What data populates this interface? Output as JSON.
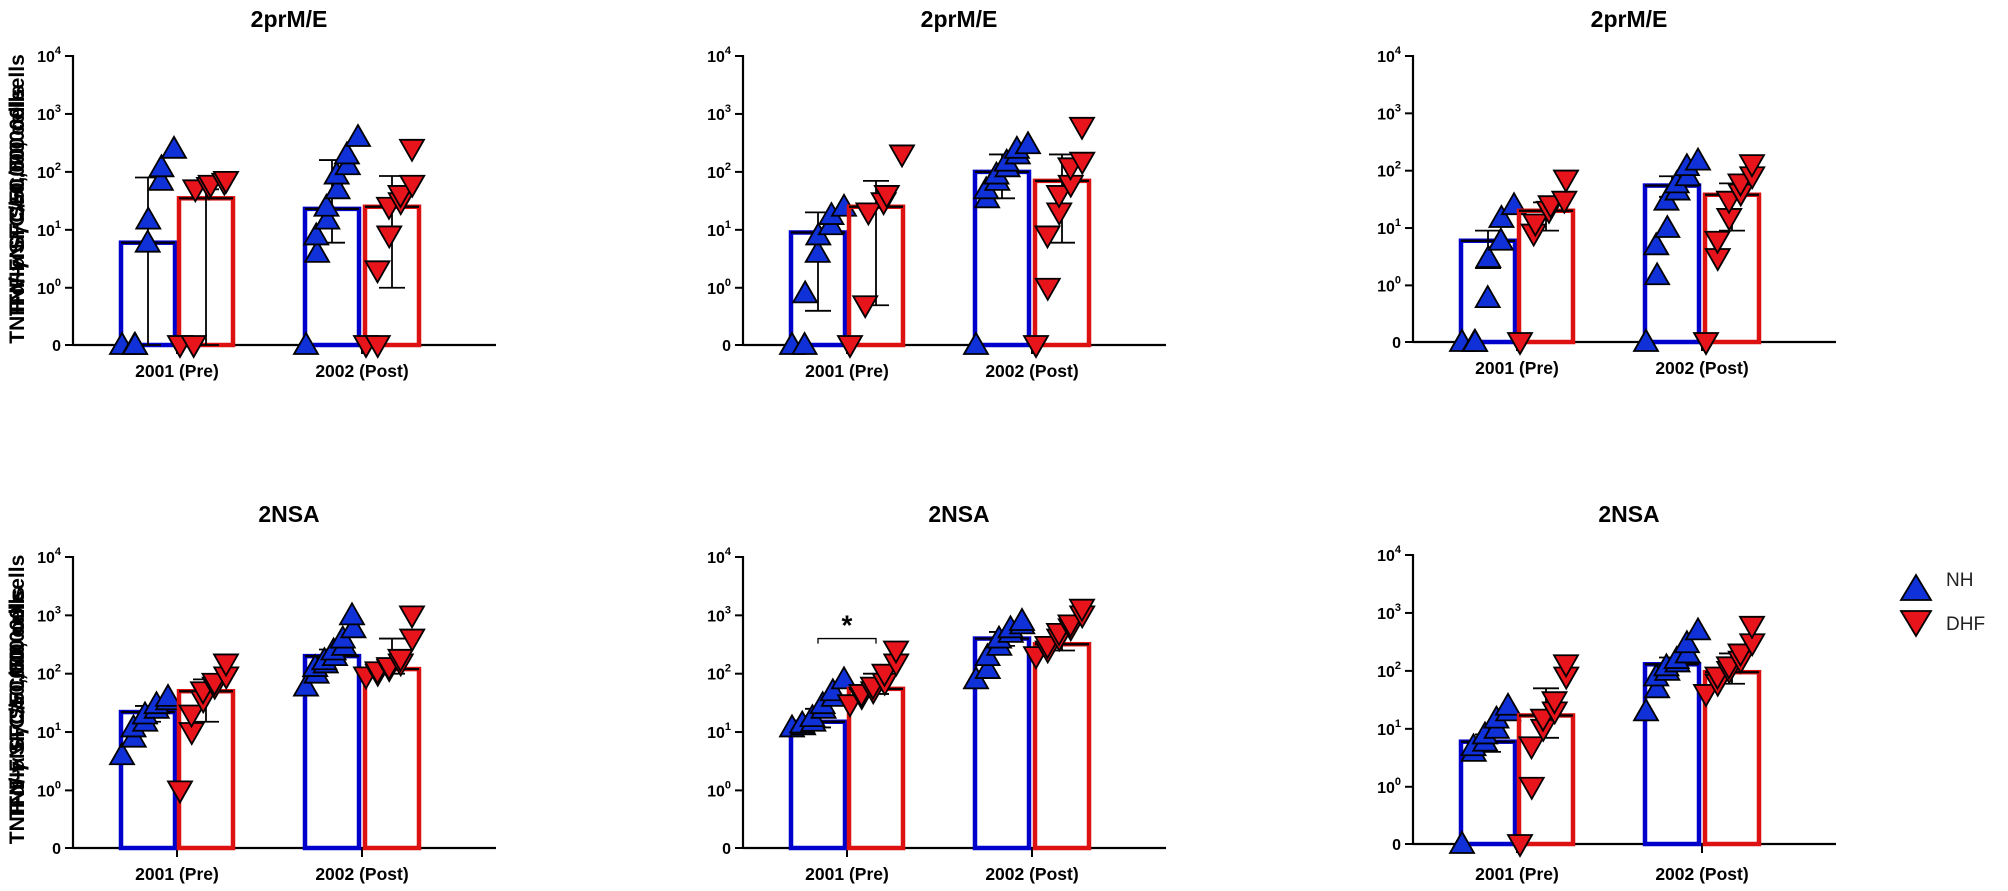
{
  "legend": [
    {
      "name": "NH",
      "color": "#1030d8",
      "stroke": "#0000cc",
      "marker": "triangle-up"
    },
    {
      "name": "DHF",
      "color": "#e8141c",
      "stroke": "#dd1111",
      "marker": "triangle-down"
    }
  ],
  "chart_data": [
    {
      "type": "bar",
      "title": "2prM/E",
      "ylabel": "TNF-α SFC/50,000 cells",
      "categories": [
        "2001 (Pre)",
        "2002 (Post)"
      ],
      "yscale": "log (0, 10^0–10^4)",
      "ylim": [
        0,
        10000
      ],
      "yticks": [
        {
          "exp": "4"
        },
        {
          "exp": "3"
        },
        {
          "exp": "2"
        },
        {
          "exp": "1"
        },
        {
          "exp": "0"
        }
      ],
      "zero_label": "0",
      "series": [
        {
          "name": "NH",
          "values": [
            6,
            23
          ],
          "err_low": [
            0,
            6
          ],
          "err_high": [
            80,
            160
          ],
          "points": [
            [
              0,
              0,
              0,
              6,
              15,
              70,
              120,
              250
            ],
            [
              0,
              4,
              8,
              15,
              25,
              50,
              90,
              130,
              200,
              400
            ]
          ]
        },
        {
          "name": "DHF",
          "values": [
            35,
            25
          ],
          "err_low": [
            0,
            1
          ],
          "err_high": [
            50,
            85
          ],
          "points": [
            [
              0,
              0,
              50,
              55,
              60,
              65,
              70
            ],
            [
              0,
              0,
              2,
              8,
              25,
              30,
              40,
              60,
              250
            ]
          ]
        }
      ]
    },
    {
      "type": "bar",
      "title": "2prM/E",
      "ylabel": "IFN-γ SFC/50,000 cells",
      "categories": [
        "2001 (Pre)",
        "2002 (Post)"
      ],
      "yscale": "log (0, 10^0–10^4)",
      "ylim": [
        0,
        10000
      ],
      "yticks": [
        {
          "exp": "4"
        },
        {
          "exp": "3"
        },
        {
          "exp": "2"
        },
        {
          "exp": "1"
        },
        {
          "exp": "0"
        }
      ],
      "zero_label": "0",
      "series": [
        {
          "name": "NH",
          "values": [
            9,
            100
          ],
          "err_low": [
            0.4,
            35
          ],
          "err_high": [
            20,
            200
          ],
          "points": [
            [
              0,
              0,
              0.8,
              4,
              8,
              12,
              18,
              25
            ],
            [
              0,
              35,
              50,
              70,
              90,
              120,
              150,
              200,
              250,
              300
            ]
          ]
        },
        {
          "name": "DHF",
          "values": [
            25,
            70
          ],
          "err_low": [
            0.5,
            6
          ],
          "err_high": [
            70,
            200
          ],
          "points": [
            [
              0,
              0.5,
              20,
              30,
              40,
              200
            ],
            [
              0,
              1,
              8,
              20,
              40,
              60,
              120,
              150,
              600
            ]
          ]
        }
      ]
    },
    {
      "type": "bar",
      "title": "2prM/E",
      "ylabel": "TNF-α/IFN-γ SFC/50,000 cells",
      "categories": [
        "2001 (Pre)",
        "2002 (Post)"
      ],
      "yscale": "log (0, 10^0–10^4)",
      "ylim": [
        0,
        10000
      ],
      "yticks": [
        {
          "exp": "4"
        },
        {
          "exp": "3"
        },
        {
          "exp": "2"
        },
        {
          "exp": "1"
        },
        {
          "exp": "0"
        }
      ],
      "zero_label": "0",
      "series": [
        {
          "name": "NH",
          "values": [
            6,
            55
          ],
          "err_low": [
            2,
            35
          ],
          "err_high": [
            9,
            80
          ],
          "points": [
            [
              0,
              0,
              0,
              0.6,
              3,
              6,
              15,
              25
            ],
            [
              0,
              1.5,
              5,
              10,
              30,
              45,
              60,
              80,
              120,
              150
            ]
          ]
        },
        {
          "name": "DHF",
          "values": [
            20,
            38
          ],
          "err_low": [
            9,
            9
          ],
          "err_high": [
            28,
            60
          ],
          "points": [
            [
              0,
              8,
              12,
              20,
              25,
              30,
              70
            ],
            [
              0,
              3,
              6,
              15,
              30,
              40,
              60,
              80,
              130
            ]
          ]
        }
      ]
    },
    {
      "type": "bar",
      "title": "2NSA",
      "ylabel": "TNF-α SFC/50,000 cells",
      "categories": [
        "2001 (Pre)",
        "2002 (Post)"
      ],
      "yscale": "log (0, 10^0–10^4)",
      "ylim": [
        0,
        10000
      ],
      "yticks": [
        {
          "exp": "4"
        },
        {
          "exp": "3"
        },
        {
          "exp": "2"
        },
        {
          "exp": "1"
        },
        {
          "exp": "0"
        }
      ],
      "zero_label": "0",
      "series": [
        {
          "name": "NH",
          "values": [
            22,
            200
          ],
          "err_low": [
            15,
            150
          ],
          "err_high": [
            28,
            260
          ],
          "points": [
            [
              4,
              8,
              12,
              15,
              20,
              25,
              30,
              35,
              40
            ],
            [
              60,
              100,
              130,
              150,
              170,
              200,
              250,
              300,
              400,
              600,
              1000
            ]
          ]
        },
        {
          "name": "DHF",
          "values": [
            50,
            120
          ],
          "err_low": [
            15,
            100
          ],
          "err_high": [
            80,
            400
          ],
          "points": [
            [
              1,
              10,
              20,
              35,
              50,
              60,
              70,
              90,
              150
            ],
            [
              90,
              100,
              110,
              120,
              130,
              150,
              180,
              400,
              1000
            ]
          ]
        }
      ]
    },
    {
      "type": "bar",
      "title": "2NSA",
      "ylabel": "IFN-γ SFC/50,000 cells",
      "categories": [
        "2001 (Pre)",
        "2002 (Post)"
      ],
      "yscale": "log (0, 10^0–10^4)",
      "ylim": [
        0,
        10000
      ],
      "yticks": [
        {
          "exp": "4"
        },
        {
          "exp": "3"
        },
        {
          "exp": "2"
        },
        {
          "exp": "1"
        },
        {
          "exp": "0"
        }
      ],
      "zero_label": "0",
      "series": [
        {
          "name": "NH",
          "values": [
            15,
            400
          ],
          "err_low": [
            12,
            300
          ],
          "err_high": [
            25,
            520
          ],
          "points": [
            [
              12,
              13,
              14,
              15,
              18,
              25,
              30,
              40,
              50,
              80
            ],
            [
              80,
              120,
              200,
              300,
              400,
              500,
              600,
              700,
              800
            ]
          ]
        },
        {
          "name": "DHF",
          "values": [
            55,
            320
          ],
          "err_low": [
            45,
            250
          ],
          "err_high": [
            100,
            700
          ],
          "points": [
            [
              30,
              40,
              45,
              50,
              60,
              70,
              100,
              150,
              250
            ],
            [
              200,
              250,
              300,
              400,
              500,
              600,
              700,
              1000,
              1300
            ]
          ]
        }
      ],
      "annotation": {
        "text": "*",
        "between": [
          0,
          0
        ]
      }
    },
    {
      "type": "bar",
      "title": "2NSA",
      "ylabel": "TNF-α/IFN-γ SFC/50,000 cells",
      "categories": [
        "2001 (Pre)",
        "2002 (Post)"
      ],
      "yscale": "log (0, 10^0–10^4)",
      "ylim": [
        0,
        10000
      ],
      "yticks": [
        {
          "exp": "4"
        },
        {
          "exp": "3"
        },
        {
          "exp": "2"
        },
        {
          "exp": "1"
        },
        {
          "exp": "0"
        }
      ],
      "zero_label": "0",
      "series": [
        {
          "name": "NH",
          "values": [
            6,
            130
          ],
          "err_low": [
            4,
            100
          ],
          "err_high": [
            8,
            170
          ],
          "points": [
            [
              0,
              4,
              5,
              6,
              8,
              10,
              15,
              20,
              25
            ],
            [
              20,
              50,
              80,
              100,
              120,
              140,
              160,
              200,
              300,
              500
            ]
          ]
        },
        {
          "name": "DHF",
          "values": [
            17,
            95
          ],
          "err_low": [
            7,
            60
          ],
          "err_high": [
            50,
            200
          ],
          "points": [
            [
              0,
              1,
              5,
              10,
              15,
              20,
              30,
              80,
              130
            ],
            [
              40,
              60,
              80,
              100,
              120,
              150,
              200,
              300,
              600
            ]
          ]
        }
      ]
    }
  ]
}
